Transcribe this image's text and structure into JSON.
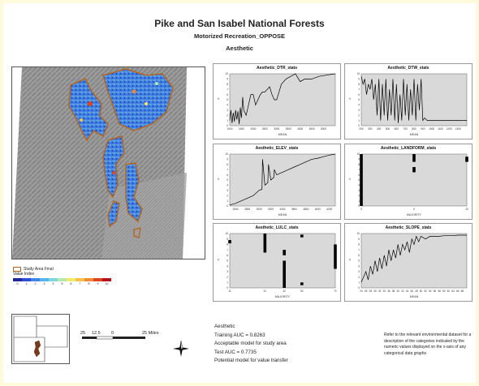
{
  "titles": {
    "main": "Pike and San Isabel National Forests",
    "sub": "Motorized Recreation_OPPOSE",
    "subsub": "Aesthetic"
  },
  "legend": {
    "study_area": "Study Area Final",
    "value_index": "Value Index",
    "ramp_labels": [
      "0",
      "1",
      "2",
      "3",
      "4",
      "5",
      "6",
      "7",
      "8",
      "9",
      "10"
    ],
    "ramp_colors": [
      "#1e2a9a",
      "#2b4fd6",
      "#3d86e8",
      "#52b4f0",
      "#7fd6e0",
      "#b8e8a8",
      "#f0ec6a",
      "#f7c24a",
      "#f28a2e",
      "#e0431e",
      "#b3121a"
    ]
  },
  "scalebar": {
    "labels": [
      "25",
      "12.5",
      "0",
      "25 Miles"
    ]
  },
  "info": {
    "heading": "Aesthetic",
    "training": "Training AUC = 0.8263",
    "acceptable": "Acceptable model for study area",
    "test": "Test AUC = 0.7735",
    "potential": "Potential model for value transfer"
  },
  "note": "Refer to the relevant environmental dataset for a description of the categories indicated by the numeric values displayed on the x-axis of any categorical data graphs",
  "colors": {
    "plot_bg": "#d9d9d9",
    "line": "#000000",
    "outline": "#b5651d"
  },
  "chart_data": [
    {
      "type": "line",
      "title": "Aesthetic_DTR_stats",
      "xlabel": "MEAN",
      "ylabel": "V",
      "xlim": [
        1000,
        5500
      ],
      "ylim": [
        0,
        10
      ],
      "xticks": [
        "1000",
        "1500",
        "2000",
        "2500",
        "3000",
        "3500",
        "4000",
        "4500",
        "5000"
      ],
      "yticks": [
        "0",
        "1",
        "2",
        "3",
        "4",
        "5",
        "6",
        "7",
        "8",
        "9",
        "10"
      ],
      "x": [
        1000,
        1050,
        1100,
        1150,
        1200,
        1250,
        1300,
        1350,
        1400,
        1450,
        1500,
        1550,
        1600,
        1700,
        1800,
        1900,
        2000,
        2100,
        2200,
        2300,
        2400,
        2500,
        2600,
        2700,
        2800,
        2900,
        3000,
        3200,
        3400,
        3600,
        3800,
        4000,
        4200,
        4500,
        4800,
        5200,
        5500
      ],
      "y": [
        1,
        3,
        0.5,
        2.5,
        0.8,
        3,
        1.2,
        2.8,
        0.3,
        3.5,
        1.5,
        5.5,
        3,
        2,
        4,
        6,
        6,
        4,
        5,
        6,
        6.5,
        6.5,
        7,
        7.5,
        6,
        5,
        5,
        8,
        9,
        9.5,
        10,
        8.5,
        9,
        9,
        9.5,
        9.8,
        10
      ]
    },
    {
      "type": "line",
      "title": "Aesthetic_DTW_stats",
      "xlabel": "MEAN",
      "ylabel": "V",
      "xlim": [
        200,
        1400
      ],
      "ylim": [
        0,
        10
      ],
      "xticks": [
        "200",
        "300",
        "400",
        "500",
        "600",
        "700",
        "800",
        "900",
        "1000",
        "1100",
        "1200",
        "1300"
      ],
      "yticks": [
        "0",
        "1",
        "2",
        "3",
        "4",
        "5",
        "6",
        "7",
        "8",
        "9",
        "10"
      ],
      "x": [
        200,
        220,
        240,
        260,
        280,
        300,
        320,
        340,
        360,
        380,
        400,
        420,
        440,
        460,
        480,
        500,
        520,
        540,
        560,
        580,
        600,
        620,
        640,
        660,
        680,
        700,
        720,
        740,
        760,
        780,
        800,
        820,
        840,
        860,
        880,
        900,
        920,
        950,
        1000,
        1100,
        1200,
        1300,
        1400
      ],
      "y": [
        9.5,
        8,
        9,
        6,
        8,
        7,
        9,
        5,
        8,
        2,
        9,
        1,
        8,
        2,
        9,
        1,
        7,
        2,
        9,
        1,
        8,
        0.5,
        6,
        1,
        9,
        2,
        8,
        1,
        7,
        2,
        9,
        1,
        8,
        3,
        9,
        1,
        1.5,
        1,
        1,
        1,
        1,
        1,
        1
      ]
    },
    {
      "type": "line",
      "title": "Aesthetic_ELEV_stats",
      "xlabel": "MEAN",
      "ylabel": "V",
      "xlim": [
        2500,
        4300
      ],
      "ylim": [
        0,
        10
      ],
      "xticks": [
        "2600",
        "2800",
        "3000",
        "3200",
        "3400",
        "3600",
        "3800",
        "4000",
        "4200"
      ],
      "yticks": [
        "0",
        "1",
        "2",
        "3",
        "4",
        "5",
        "6",
        "7",
        "8",
        "9",
        "10"
      ],
      "x": [
        2500,
        2600,
        2700,
        2800,
        2900,
        3000,
        3050,
        3060,
        3100,
        3150,
        3160,
        3200,
        3250,
        3260,
        3300,
        3400,
        3500,
        3600,
        3700,
        3800,
        3900,
        4000,
        4100,
        4200,
        4300
      ],
      "y": [
        0.2,
        0.5,
        1,
        1.5,
        2,
        3,
        3.2,
        9,
        4,
        4.5,
        8,
        5,
        5.5,
        7,
        6,
        6.5,
        7,
        7.5,
        8,
        8.5,
        9,
        9.2,
        9.5,
        9.8,
        10
      ]
    },
    {
      "type": "bar",
      "title": "Aesthetic_LANDFORM_stats",
      "xlabel": "MAJORITY",
      "ylabel": "V",
      "categories": [
        "0",
        "5",
        "10"
      ],
      "xlim": [
        0,
        10
      ],
      "ylim": [
        0,
        10
      ],
      "yticks": [
        "0",
        "1",
        "2",
        "3",
        "4",
        "5",
        "6",
        "7",
        "8",
        "9",
        "10"
      ],
      "segments": [
        {
          "x": 0,
          "y0": 0,
          "y1": 10
        },
        {
          "x": 5,
          "y0": 6.5,
          "y1": 7.5
        },
        {
          "x": 5,
          "y0": 8.5,
          "y1": 10
        },
        {
          "x": 10,
          "y0": 8.5,
          "y1": 9.5
        }
      ]
    },
    {
      "type": "bar",
      "title": "Aesthetic_LULC_stats",
      "xlabel": "MAJORITY",
      "ylabel": "V",
      "categories": [
        "11",
        "31",
        "42",
        "52",
        "71"
      ],
      "xlim": [
        11,
        71
      ],
      "ylim": [
        0,
        10
      ],
      "yticks": [
        "0",
        "1",
        "2",
        "3",
        "4",
        "5",
        "6",
        "7",
        "8",
        "9",
        "10"
      ],
      "segments": [
        {
          "x": 11,
          "y0": 8.2,
          "y1": 8.8
        },
        {
          "x": 31,
          "y0": 6.5,
          "y1": 10
        },
        {
          "x": 42,
          "y0": 0,
          "y1": 5
        },
        {
          "x": 42,
          "y0": 6,
          "y1": 7
        },
        {
          "x": 52,
          "y0": 0.5,
          "y1": 1
        },
        {
          "x": 52,
          "y0": 9.3,
          "y1": 9.8
        },
        {
          "x": 71,
          "y0": 3.5,
          "y1": 8
        }
      ]
    },
    {
      "type": "line",
      "title": "Aesthetic_SLOPE_stats",
      "xlabel": "MEAN",
      "ylabel": "V",
      "xlim": [
        24,
        70
      ],
      "ylim": [
        0,
        10
      ],
      "xticks": [
        "24",
        "26",
        "28",
        "30",
        "32",
        "34",
        "36",
        "38",
        "40",
        "42",
        "44",
        "46",
        "48",
        "50",
        "52",
        "54",
        "56",
        "58",
        "60",
        "62",
        "64",
        "66",
        "68"
      ],
      "yticks": [
        "0",
        "1",
        "2",
        "3",
        "4",
        "5",
        "6",
        "7",
        "8",
        "9",
        "10"
      ],
      "x": [
        24,
        25,
        26,
        27,
        28,
        29,
        30,
        31,
        32,
        33,
        34,
        35,
        36,
        37,
        38,
        39,
        40,
        41,
        42,
        43,
        44,
        45,
        46,
        47,
        48,
        49,
        50,
        52,
        54,
        56,
        58,
        60,
        62,
        64,
        66,
        68,
        70
      ],
      "y": [
        1,
        2,
        3,
        1.5,
        4,
        2.5,
        5,
        3,
        5.5,
        3.5,
        6,
        4,
        7,
        5,
        7,
        5.5,
        8,
        6,
        8,
        7,
        8.5,
        6.5,
        9,
        8,
        9.5,
        8.5,
        9.5,
        9,
        9.5,
        9.5,
        9.5,
        9.6,
        9.6,
        9.6,
        9.7,
        9.7,
        9.7
      ]
    }
  ]
}
